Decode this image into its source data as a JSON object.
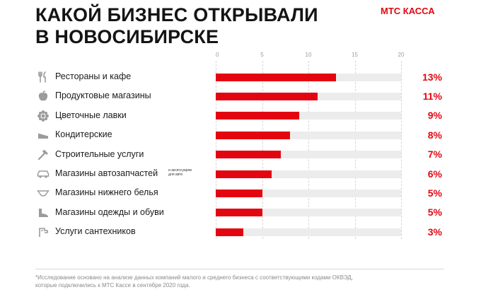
{
  "header": {
    "title_line1": "КАКОЙ БИЗНЕС ОТКРЫВАЛИ",
    "title_line2": "В НОВОСИБИРСКЕ",
    "brand": "МТС КАССА"
  },
  "colors": {
    "accent": "#e30611",
    "track": "#ececec",
    "text": "#1a1a1a"
  },
  "chart_data": {
    "type": "bar",
    "orientation": "horizontal",
    "title": "КАКОЙ БИЗНЕС ОТКРЫВАЛИ В НОВОСИБИРСКЕ",
    "xlim": [
      0,
      20
    ],
    "ticks": [
      0,
      5,
      10,
      15,
      20
    ],
    "tick_labels": [
      "0",
      "5",
      "10",
      "15",
      "20"
    ],
    "categories": [
      "Рестораны и кафе",
      "Продуктовые магазины",
      "Цветочные лавки",
      "Кондитерские",
      "Строительные услуги",
      "Магазины автозапчастей",
      "Магазины нижнего белья",
      "Магазины одежды и обуви",
      "Услуги сантехников"
    ],
    "values": [
      13,
      11,
      9,
      8,
      7,
      6,
      5,
      5,
      3
    ],
    "value_labels": [
      "13%",
      "11%",
      "9%",
      "8%",
      "7%",
      "6%",
      "5%",
      "5%",
      "3%"
    ],
    "icons": [
      "fork-knife-icon",
      "apple-icon",
      "flower-icon",
      "cake-icon",
      "hammer-icon",
      "car-icon",
      "lingerie-icon",
      "shoe-icon",
      "faucet-icon"
    ],
    "annotations": [
      {
        "category": "Магазины автозапчастей",
        "line1": "и аксессуаров",
        "line2": "для авто"
      }
    ]
  },
  "footnote": {
    "line1": "*Исследование основано на анализе данных компаний малого и среднего бизнеса с соответствующими кодами ОКВЭД,",
    "line2": "которые подключились к МТС Кассе в сентябре 2020 года."
  }
}
